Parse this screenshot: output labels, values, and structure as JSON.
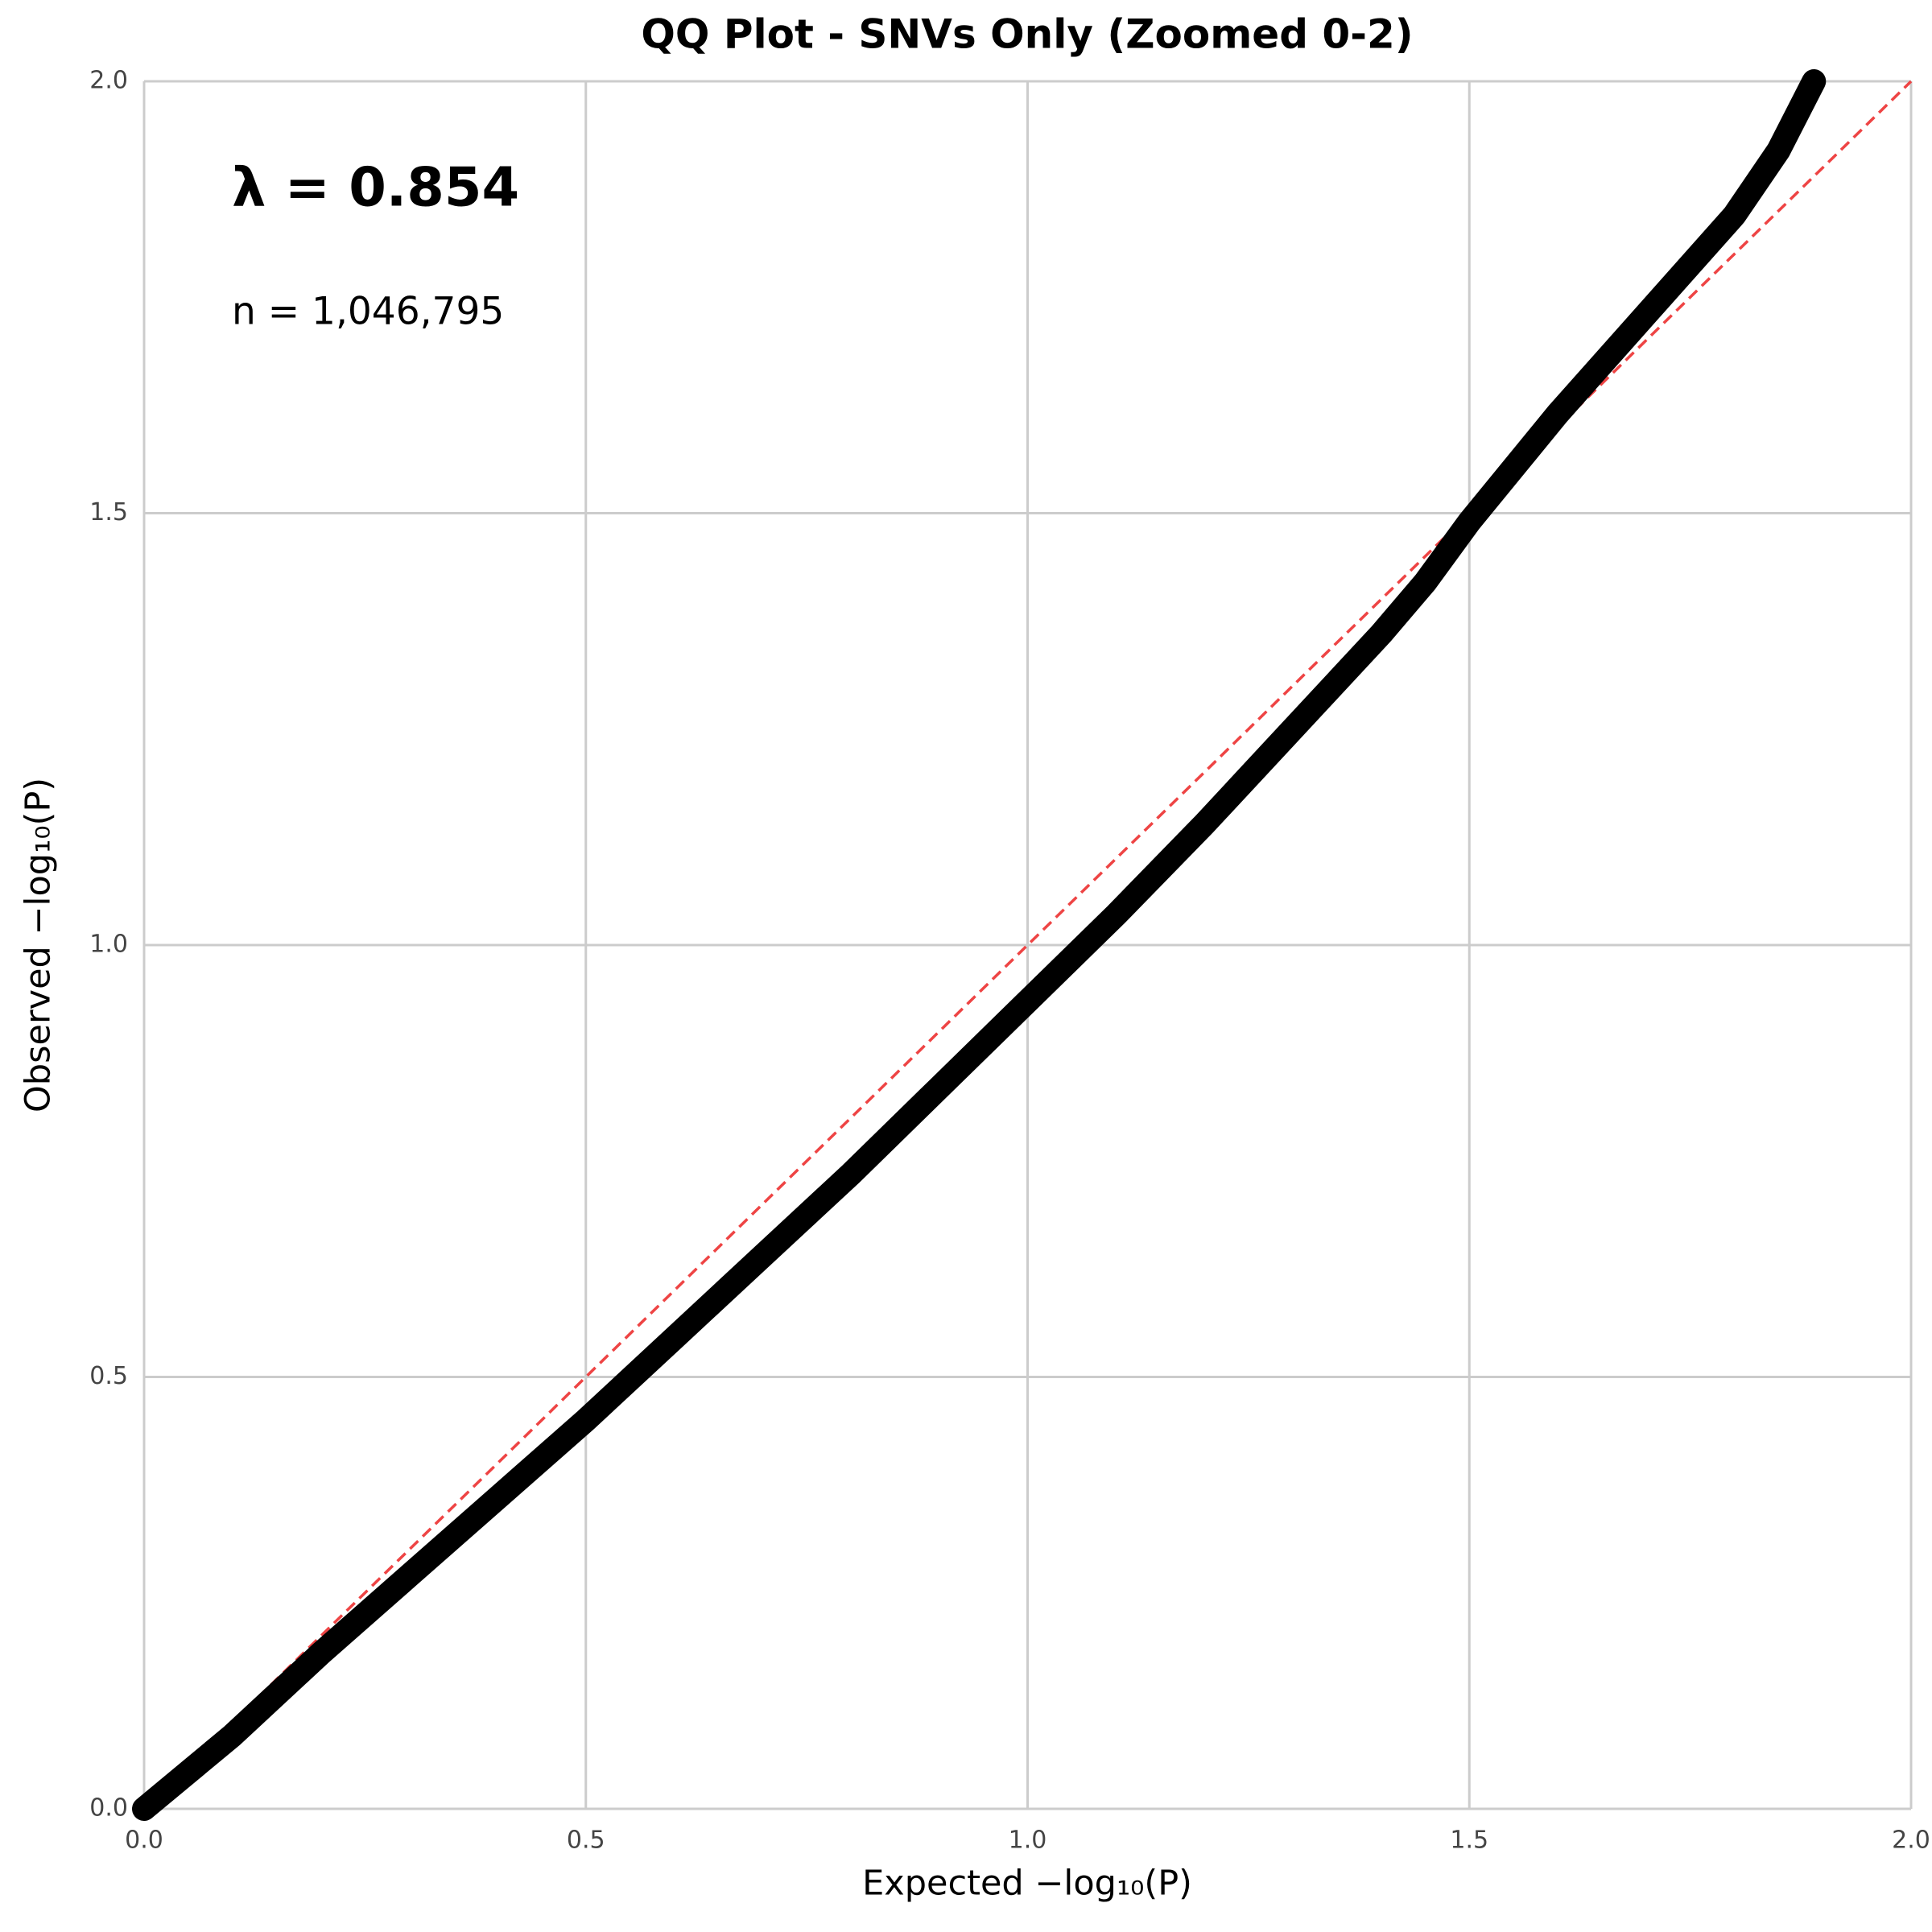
{
  "chart_data": {
    "type": "line",
    "title": "QQ Plot - SNVs Only (Zoomed 0-2)",
    "xlabel": "Expected −log₁₀(P)",
    "ylabel": "Observed −log₁₀(P)",
    "annotations": [
      "λ = 0.854",
      "n = 1,046,795"
    ],
    "x": [
      0,
      0.1,
      0.2,
      0.3,
      0.4,
      0.5,
      0.6,
      0.7,
      0.8,
      0.9,
      1.0,
      1.1,
      1.2,
      1.3,
      1.4,
      1.45,
      1.5,
      1.6,
      1.7,
      1.8,
      1.85,
      1.89
    ],
    "series": [
      {
        "color": "#000000",
        "values": [
          0,
          0.085,
          0.18,
          0.27,
          0.36,
          0.45,
          0.545,
          0.64,
          0.735,
          0.835,
          0.935,
          1.035,
          1.14,
          1.25,
          1.36,
          1.42,
          1.49,
          1.615,
          1.73,
          1.845,
          1.92,
          2.0
        ]
      }
    ],
    "reference_line": {
      "x": [
        0,
        2
      ],
      "y": [
        0,
        2
      ],
      "color": "#ee4444"
    },
    "xlim": [
      0,
      2
    ],
    "ylim": [
      0,
      2
    ],
    "xticks": [
      {
        "value": 0,
        "label": "0.0"
      },
      {
        "value": 0.5,
        "label": "0.5"
      },
      {
        "value": 1,
        "label": "1.0"
      },
      {
        "value": 1.5,
        "label": "1.5"
      },
      {
        "value": 2,
        "label": "2.0"
      }
    ],
    "yticks": [
      {
        "value": 0,
        "label": "0.0"
      },
      {
        "value": 0.5,
        "label": "0.5"
      },
      {
        "value": 1,
        "label": "1.0"
      },
      {
        "value": 1.5,
        "label": "1.5"
      },
      {
        "value": 2,
        "label": "2.0"
      }
    ],
    "grid": true
  }
}
